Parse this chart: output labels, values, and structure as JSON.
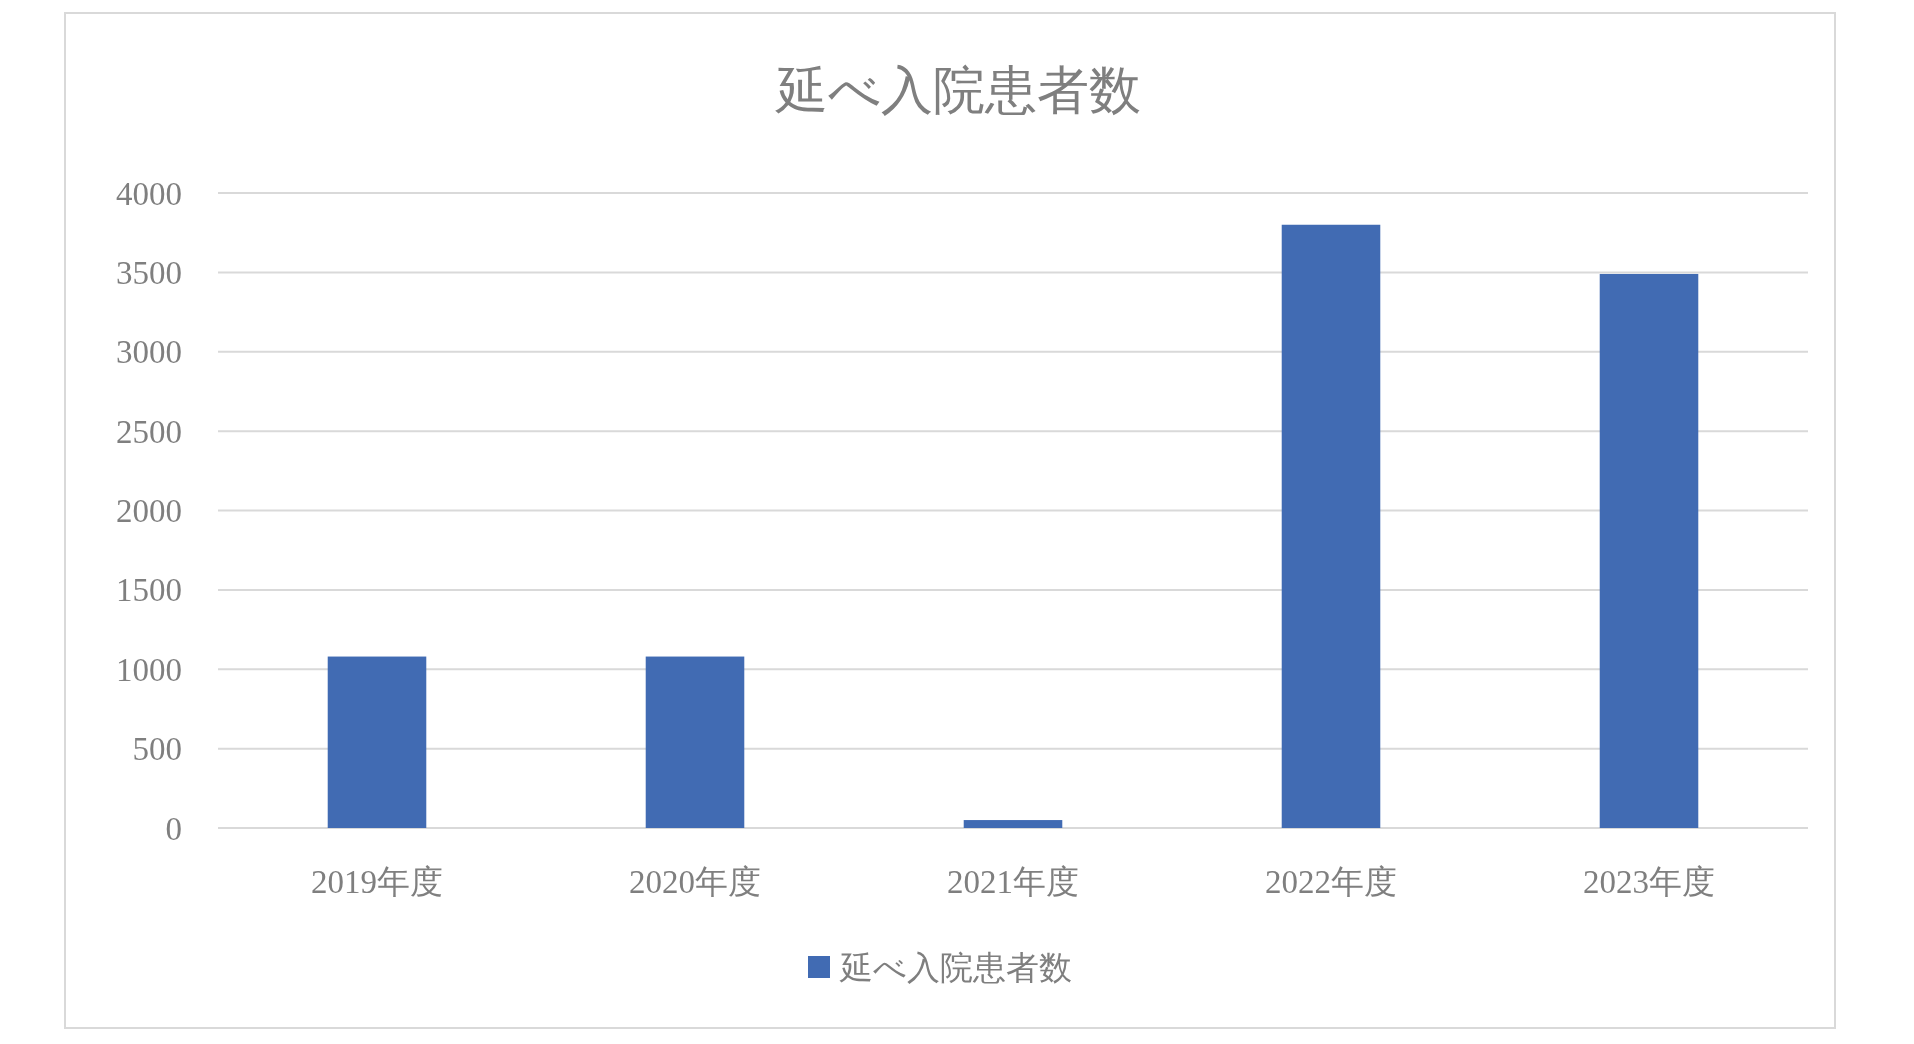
{
  "chart_data": {
    "type": "bar",
    "title": "延べ入院患者数",
    "categories": [
      "2019年度",
      "2020年度",
      "2021年度",
      "2022年度",
      "2023年度"
    ],
    "series": [
      {
        "name": "延べ入院患者数",
        "color": "#416bb3",
        "values": [
          1080,
          1080,
          50,
          3800,
          3490
        ]
      }
    ],
    "ylim": [
      0,
      4000
    ],
    "yticks": [
      0,
      500,
      1000,
      1500,
      2000,
      2500,
      3000,
      3500,
      4000
    ],
    "grid": "y",
    "legend": "bottom"
  }
}
